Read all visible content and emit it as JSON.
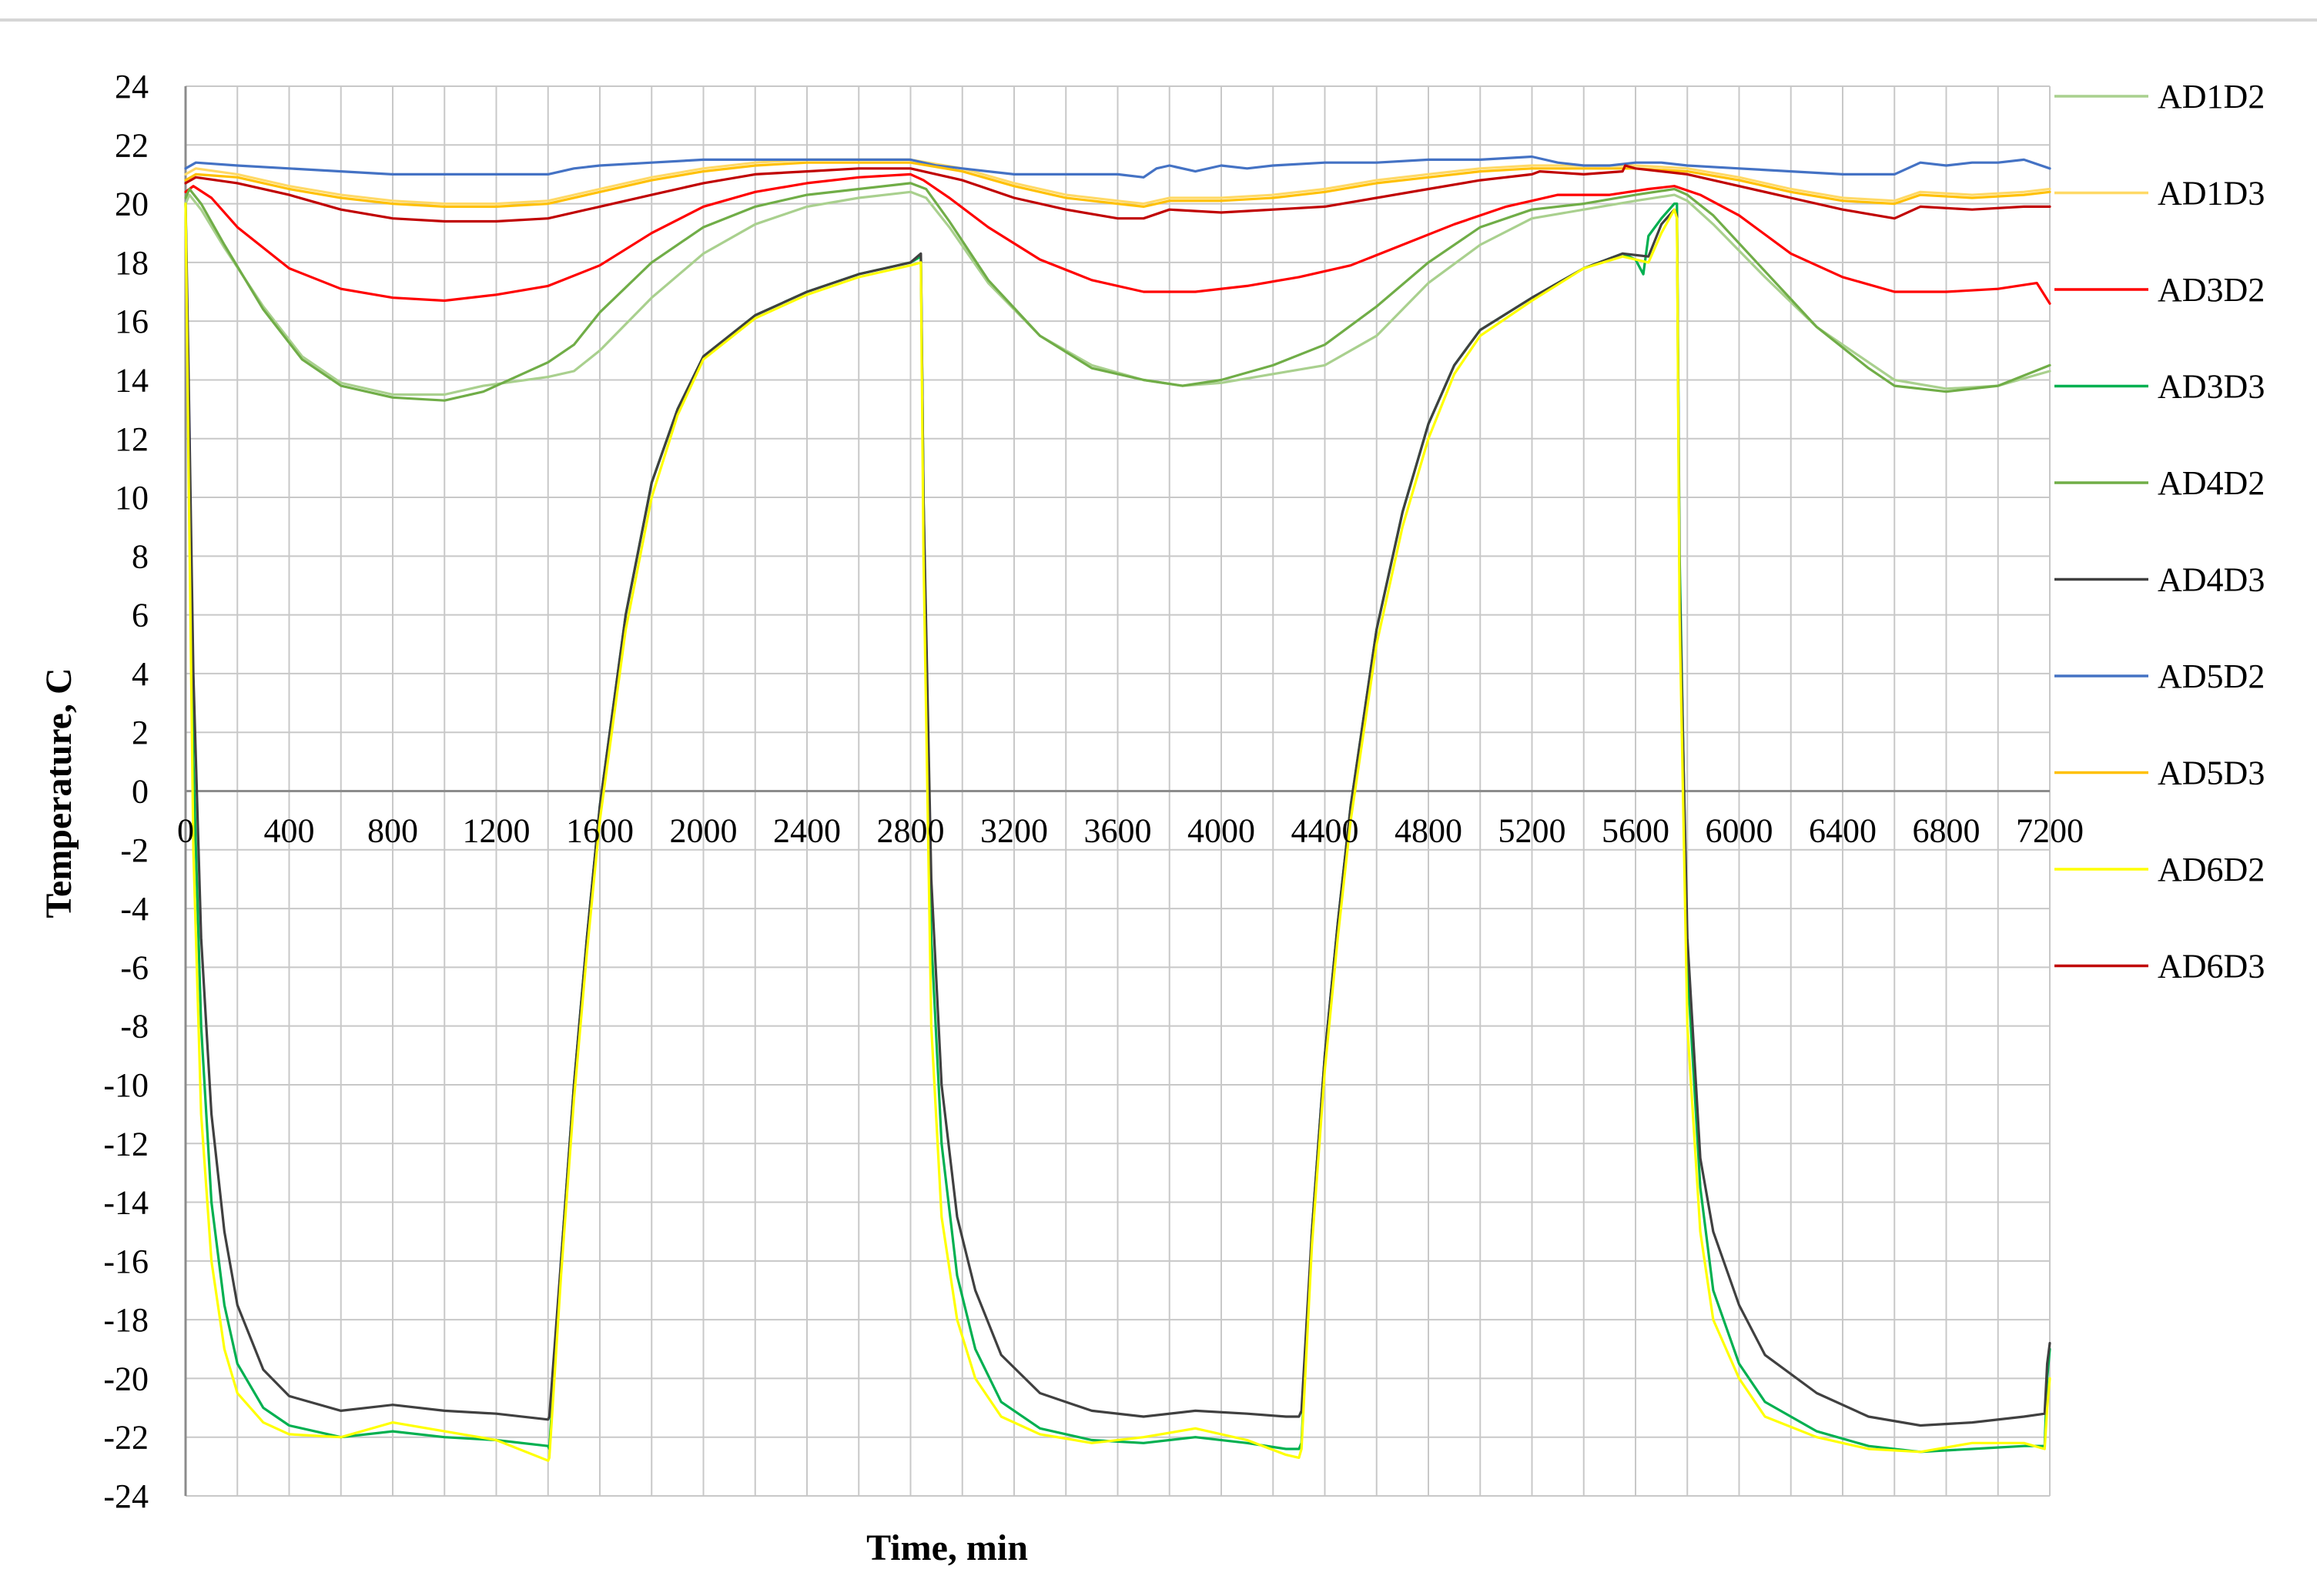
{
  "chart_data": {
    "type": "line",
    "title": "",
    "xlabel": "Time, min",
    "ylabel": "Temperature, C",
    "xlim": [
      0,
      7200
    ],
    "ylim": [
      -24,
      24
    ],
    "x_ticks": [
      0,
      400,
      800,
      1200,
      1600,
      2000,
      2400,
      2800,
      3200,
      3600,
      4000,
      4400,
      4800,
      5200,
      5600,
      6000,
      6400,
      6800,
      7200
    ],
    "y_ticks": [
      24,
      22,
      20,
      18,
      16,
      14,
      12,
      10,
      8,
      6,
      4,
      2,
      0,
      -2,
      -4,
      -6,
      -8,
      -10,
      -12,
      -14,
      -16,
      -18,
      -20,
      -22,
      -24
    ],
    "grid": true,
    "legend_position": "right",
    "series": [
      {
        "name": "AD1D2",
        "color": "#a9d08e",
        "x": [
          0,
          15,
          60,
          150,
          300,
          450,
          600,
          800,
          1000,
          1150,
          1400,
          1500,
          1600,
          1800,
          2000,
          2200,
          2400,
          2600,
          2800,
          2860,
          2950,
          3100,
          3300,
          3500,
          3700,
          3850,
          4000,
          4200,
          4400,
          4600,
          4800,
          5000,
          5200,
          5400,
          5600,
          5750,
          5800,
          5900,
          6100,
          6300,
          6500,
          6600,
          6800,
          7000,
          7200
        ],
        "y": [
          20.0,
          20.3,
          19.8,
          18.5,
          16.5,
          14.8,
          13.9,
          13.5,
          13.5,
          13.8,
          14.1,
          14.3,
          15.0,
          16.8,
          18.3,
          19.3,
          19.9,
          20.2,
          20.4,
          20.2,
          19.2,
          17.3,
          15.5,
          14.5,
          14.0,
          13.8,
          13.9,
          14.2,
          14.5,
          15.5,
          17.3,
          18.6,
          19.5,
          19.8,
          20.1,
          20.3,
          20.1,
          19.3,
          17.5,
          15.8,
          14.6,
          14.0,
          13.7,
          13.8,
          14.3
        ]
      },
      {
        "name": "AD1D3",
        "color": "#ffd966",
        "x": [
          0,
          40,
          200,
          400,
          600,
          800,
          1000,
          1200,
          1400,
          1600,
          1800,
          2000,
          2200,
          2400,
          2600,
          2800,
          3000,
          3200,
          3400,
          3600,
          3700,
          3800,
          4000,
          4200,
          4400,
          4600,
          4800,
          5000,
          5200,
          5400,
          5600,
          5800,
          6000,
          6200,
          6400,
          6600,
          6700,
          6900,
          7100,
          7200
        ],
        "y": [
          21.0,
          21.2,
          21.0,
          20.6,
          20.3,
          20.1,
          20.0,
          20.0,
          20.1,
          20.5,
          20.9,
          21.2,
          21.4,
          21.5,
          21.5,
          21.5,
          21.2,
          20.7,
          20.3,
          20.1,
          20.0,
          20.2,
          20.2,
          20.3,
          20.5,
          20.8,
          21.0,
          21.2,
          21.3,
          21.3,
          21.3,
          21.2,
          20.9,
          20.5,
          20.2,
          20.1,
          20.4,
          20.3,
          20.4,
          20.5
        ]
      },
      {
        "name": "AD3D2",
        "color": "#ff0000",
        "x": [
          0,
          30,
          100,
          200,
          400,
          600,
          800,
          1000,
          1200,
          1400,
          1600,
          1800,
          2000,
          2200,
          2400,
          2600,
          2800,
          2850,
          2950,
          3100,
          3300,
          3500,
          3700,
          3900,
          4100,
          4300,
          4500,
          4700,
          4900,
          5100,
          5300,
          5500,
          5650,
          5750,
          5850,
          6000,
          6200,
          6400,
          6600,
          6800,
          7000,
          7150,
          7200
        ],
        "y": [
          20.4,
          20.6,
          20.2,
          19.2,
          17.8,
          17.1,
          16.8,
          16.7,
          16.9,
          17.2,
          17.9,
          19.0,
          19.9,
          20.4,
          20.7,
          20.9,
          21.0,
          20.8,
          20.2,
          19.2,
          18.1,
          17.4,
          17.0,
          17.0,
          17.2,
          17.5,
          17.9,
          18.6,
          19.3,
          19.9,
          20.3,
          20.3,
          20.5,
          20.6,
          20.3,
          19.6,
          18.3,
          17.5,
          17.0,
          17.0,
          17.1,
          17.3,
          16.6
        ]
      },
      {
        "name": "AD3D3",
        "color": "#00b050",
        "x": [
          0,
          10,
          30,
          60,
          100,
          150,
          200,
          300,
          400,
          600,
          800,
          1000,
          1200,
          1400,
          1405,
          1450,
          1500,
          1550,
          1600,
          1700,
          1800,
          1900,
          2000,
          2200,
          2400,
          2600,
          2800,
          2840,
          2850,
          2880,
          2920,
          2980,
          3050,
          3150,
          3300,
          3500,
          3700,
          3900,
          4100,
          4250,
          4300,
          4310,
          4350,
          4400,
          4450,
          4500,
          4600,
          4700,
          4800,
          4900,
          5000,
          5200,
          5400,
          5550,
          5600,
          5630,
          5650,
          5700,
          5750,
          5760,
          5770,
          5800,
          5850,
          5900,
          6000,
          6100,
          6300,
          6500,
          6700,
          6900,
          7100,
          7180,
          7190,
          7200
        ],
        "y": [
          20.0,
          14.0,
          1.0,
          -8.0,
          -14.0,
          -17.5,
          -19.5,
          -21.0,
          -21.6,
          -22.0,
          -21.8,
          -22.0,
          -22.1,
          -22.3,
          -22.4,
          -16.0,
          -10.0,
          -5.0,
          -0.5,
          6.0,
          10.5,
          13.0,
          14.8,
          16.2,
          17.0,
          17.6,
          18.0,
          18.2,
          10.0,
          -5.0,
          -12.0,
          -16.5,
          -19.0,
          -20.8,
          -21.7,
          -22.1,
          -22.2,
          -22.0,
          -22.2,
          -22.4,
          -22.4,
          -22.2,
          -15.0,
          -9.0,
          -4.5,
          -0.5,
          5.5,
          9.5,
          12.5,
          14.5,
          15.7,
          16.8,
          17.8,
          18.3,
          18.1,
          17.6,
          18.9,
          19.5,
          20.0,
          20.0,
          8.0,
          -6.0,
          -13.5,
          -17.0,
          -19.5,
          -20.8,
          -21.8,
          -22.3,
          -22.5,
          -22.4,
          -22.3,
          -22.3,
          -20.0,
          -19.0
        ]
      },
      {
        "name": "AD4D2",
        "color": "#70ad47",
        "x": [
          0,
          15,
          60,
          150,
          300,
          450,
          600,
          800,
          1000,
          1150,
          1400,
          1500,
          1600,
          1800,
          2000,
          2200,
          2400,
          2600,
          2800,
          2860,
          2950,
          3100,
          3300,
          3500,
          3700,
          3850,
          4000,
          4200,
          4400,
          4600,
          4800,
          5000,
          5200,
          5400,
          5600,
          5750,
          5800,
          5900,
          6100,
          6300,
          6500,
          6600,
          6800,
          7000,
          7200
        ],
        "y": [
          20.2,
          20.5,
          20.0,
          18.6,
          16.4,
          14.7,
          13.8,
          13.4,
          13.3,
          13.6,
          14.6,
          15.2,
          16.3,
          18.0,
          19.2,
          19.9,
          20.3,
          20.5,
          20.7,
          20.5,
          19.4,
          17.4,
          15.5,
          14.4,
          14.0,
          13.8,
          14.0,
          14.5,
          15.2,
          16.5,
          18.0,
          19.2,
          19.8,
          20.0,
          20.3,
          20.5,
          20.3,
          19.6,
          17.7,
          15.8,
          14.4,
          13.8,
          13.6,
          13.8,
          14.5
        ]
      },
      {
        "name": "AD4D3",
        "color": "#404040",
        "x": [
          0,
          10,
          30,
          60,
          100,
          150,
          200,
          300,
          400,
          600,
          800,
          1000,
          1200,
          1400,
          1405,
          1450,
          1500,
          1550,
          1600,
          1700,
          1800,
          1900,
          2000,
          2200,
          2400,
          2600,
          2800,
          2840,
          2850,
          2880,
          2920,
          2980,
          3050,
          3150,
          3300,
          3500,
          3700,
          3900,
          4100,
          4250,
          4300,
          4310,
          4350,
          4400,
          4450,
          4500,
          4600,
          4700,
          4800,
          4900,
          5000,
          5200,
          5400,
          5550,
          5650,
          5700,
          5750,
          5760,
          5770,
          5800,
          5850,
          5900,
          6000,
          6100,
          6300,
          6500,
          6700,
          6900,
          7100,
          7180,
          7190,
          7200
        ],
        "y": [
          20.0,
          15.0,
          4.0,
          -5.0,
          -11.0,
          -15.0,
          -17.5,
          -19.7,
          -20.6,
          -21.1,
          -20.9,
          -21.1,
          -21.2,
          -21.4,
          -21.3,
          -16.0,
          -10.0,
          -5.0,
          -0.5,
          6.0,
          10.5,
          13.0,
          14.8,
          16.2,
          17.0,
          17.6,
          18.0,
          18.3,
          10.0,
          -3.0,
          -10.0,
          -14.5,
          -17.0,
          -19.2,
          -20.5,
          -21.1,
          -21.3,
          -21.1,
          -21.2,
          -21.3,
          -21.3,
          -21.1,
          -15.0,
          -9.0,
          -4.5,
          -0.5,
          5.5,
          9.5,
          12.5,
          14.5,
          15.7,
          16.8,
          17.8,
          18.3,
          18.2,
          19.3,
          19.8,
          19.6,
          7.0,
          -5.0,
          -12.5,
          -15.0,
          -17.5,
          -19.2,
          -20.5,
          -21.3,
          -21.6,
          -21.5,
          -21.3,
          -21.2,
          -19.5,
          -18.8
        ]
      },
      {
        "name": "AD5D2",
        "color": "#4472c4",
        "x": [
          0,
          40,
          200,
          400,
          600,
          800,
          1000,
          1200,
          1400,
          1500,
          1600,
          1800,
          2000,
          2200,
          2400,
          2600,
          2800,
          2900,
          3000,
          3200,
          3400,
          3600,
          3700,
          3750,
          3800,
          3900,
          4000,
          4100,
          4200,
          4400,
          4600,
          4800,
          5000,
          5200,
          5300,
          5400,
          5500,
          5600,
          5700,
          5800,
          6000,
          6200,
          6400,
          6600,
          6700,
          6800,
          6900,
          7000,
          7100,
          7200
        ],
        "y": [
          21.2,
          21.4,
          21.3,
          21.2,
          21.1,
          21.0,
          21.0,
          21.0,
          21.0,
          21.2,
          21.3,
          21.4,
          21.5,
          21.5,
          21.5,
          21.5,
          21.5,
          21.3,
          21.2,
          21.0,
          21.0,
          21.0,
          20.9,
          21.2,
          21.3,
          21.1,
          21.3,
          21.2,
          21.3,
          21.4,
          21.4,
          21.5,
          21.5,
          21.6,
          21.4,
          21.3,
          21.3,
          21.4,
          21.4,
          21.3,
          21.2,
          21.1,
          21.0,
          21.0,
          21.4,
          21.3,
          21.4,
          21.4,
          21.5,
          21.2
        ]
      },
      {
        "name": "AD5D3",
        "color": "#ffc000",
        "x": [
          0,
          40,
          200,
          400,
          600,
          800,
          1000,
          1200,
          1400,
          1600,
          1800,
          2000,
          2200,
          2400,
          2600,
          2800,
          3000,
          3200,
          3400,
          3600,
          3700,
          3800,
          4000,
          4200,
          4400,
          4600,
          4800,
          5000,
          5200,
          5400,
          5600,
          5800,
          6000,
          6200,
          6400,
          6600,
          6700,
          6900,
          7100,
          7200
        ],
        "y": [
          20.8,
          21.0,
          20.9,
          20.5,
          20.2,
          20.0,
          19.9,
          19.9,
          20.0,
          20.4,
          20.8,
          21.1,
          21.3,
          21.4,
          21.4,
          21.4,
          21.1,
          20.6,
          20.2,
          20.0,
          19.9,
          20.1,
          20.1,
          20.2,
          20.4,
          20.7,
          20.9,
          21.1,
          21.2,
          21.2,
          21.2,
          21.1,
          20.8,
          20.4,
          20.1,
          20.0,
          20.3,
          20.2,
          20.3,
          20.4
        ]
      },
      {
        "name": "AD6D2",
        "color": "#ffff00",
        "x": [
          0,
          10,
          30,
          60,
          100,
          150,
          200,
          300,
          400,
          600,
          800,
          1000,
          1200,
          1400,
          1405,
          1450,
          1500,
          1550,
          1600,
          1700,
          1800,
          1900,
          2000,
          2200,
          2400,
          2600,
          2800,
          2840,
          2850,
          2880,
          2920,
          2980,
          3050,
          3150,
          3300,
          3500,
          3700,
          3900,
          4100,
          4250,
          4300,
          4310,
          4350,
          4400,
          4450,
          4500,
          4600,
          4700,
          4800,
          4900,
          5000,
          5200,
          5400,
          5550,
          5650,
          5700,
          5750,
          5760,
          5770,
          5800,
          5850,
          5900,
          6000,
          6100,
          6300,
          6500,
          6700,
          6900,
          7100,
          7180,
          7190,
          7200
        ],
        "y": [
          20.0,
          12.0,
          -2.0,
          -11.0,
          -16.0,
          -19.0,
          -20.5,
          -21.5,
          -21.9,
          -22.0,
          -21.5,
          -21.8,
          -22.1,
          -22.8,
          -22.7,
          -16.5,
          -10.5,
          -5.5,
          -1.0,
          5.5,
          10.0,
          12.8,
          14.7,
          16.1,
          16.9,
          17.5,
          17.9,
          18.0,
          8.0,
          -8.0,
          -14.5,
          -18.0,
          -20.0,
          -21.3,
          -21.9,
          -22.2,
          -22.0,
          -21.7,
          -22.1,
          -22.6,
          -22.7,
          -22.4,
          -15.5,
          -9.5,
          -5.0,
          -1.0,
          5.0,
          9.0,
          12.0,
          14.2,
          15.5,
          16.7,
          17.8,
          18.2,
          18.0,
          19.0,
          19.8,
          19.5,
          6.0,
          -8.0,
          -15.0,
          -18.0,
          -20.0,
          -21.3,
          -22.0,
          -22.4,
          -22.5,
          -22.2,
          -22.2,
          -22.4,
          -21.0,
          -20.0
        ]
      },
      {
        "name": "AD6D3",
        "color": "#c00000",
        "x": [
          0,
          40,
          200,
          400,
          600,
          800,
          1000,
          1200,
          1400,
          1600,
          1800,
          2000,
          2200,
          2400,
          2600,
          2800,
          3000,
          3200,
          3400,
          3600,
          3700,
          3800,
          4000,
          4200,
          4400,
          4600,
          4800,
          5000,
          5200,
          5230,
          5400,
          5550,
          5560,
          5600,
          5800,
          6000,
          6200,
          6400,
          6600,
          6700,
          6900,
          7100,
          7200
        ],
        "y": [
          20.7,
          20.9,
          20.7,
          20.3,
          19.8,
          19.5,
          19.4,
          19.4,
          19.5,
          19.9,
          20.3,
          20.7,
          21.0,
          21.1,
          21.2,
          21.2,
          20.8,
          20.2,
          19.8,
          19.5,
          19.5,
          19.8,
          19.7,
          19.8,
          19.9,
          20.2,
          20.5,
          20.8,
          21.0,
          21.1,
          21.0,
          21.1,
          21.3,
          21.2,
          21.0,
          20.6,
          20.2,
          19.8,
          19.5,
          19.9,
          19.8,
          19.9,
          19.9
        ]
      }
    ]
  }
}
